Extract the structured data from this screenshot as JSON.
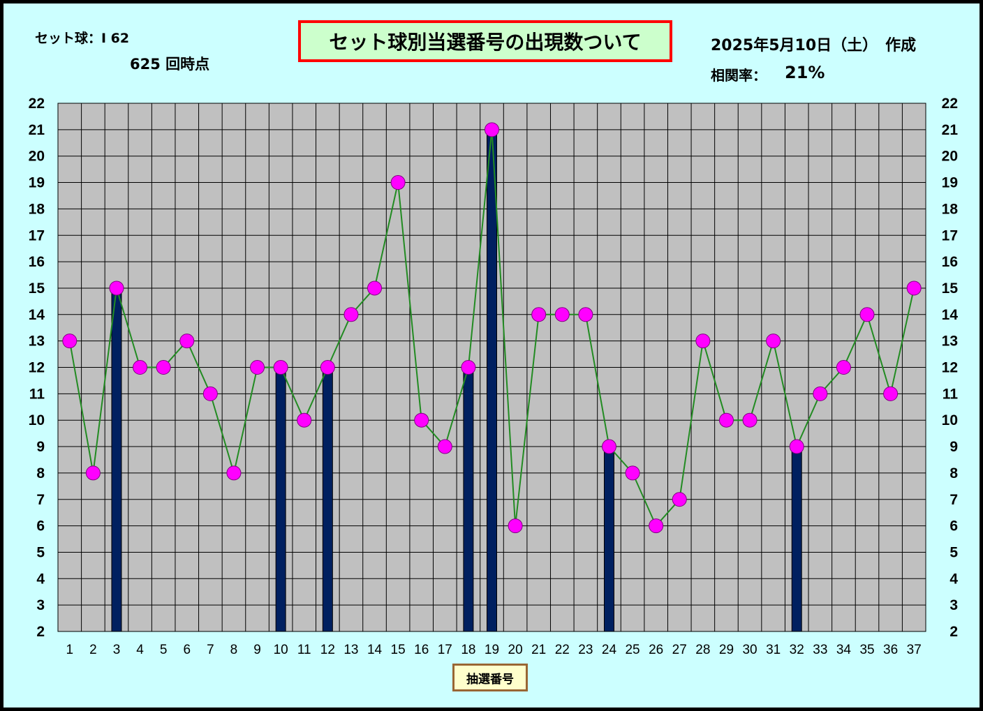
{
  "header": {
    "set_label": "セット球：I 62",
    "count_label": "625  回時点",
    "title": "セット球別当選番号の出現数ついて",
    "date": "2025年5月10日（土）　作成",
    "corr_label": "相関率：",
    "corr_value": "21%"
  },
  "colors": {
    "background": "#ccffff",
    "plot_area": "#c0c0c0",
    "bar": "#002060",
    "line": "#228b22",
    "marker": "#ff00ff",
    "title_bg": "#ccffcc",
    "title_border": "#ff0000"
  },
  "chart_data": {
    "type": "bar",
    "xlabel": "抽選番号",
    "ylabel": "",
    "title": "セット球別当選番号の出現数ついて",
    "categories": [
      "1",
      "2",
      "3",
      "4",
      "5",
      "6",
      "7",
      "8",
      "9",
      "10",
      "11",
      "12",
      "13",
      "14",
      "15",
      "16",
      "17",
      "18",
      "19",
      "20",
      "21",
      "22",
      "23",
      "24",
      "25",
      "26",
      "27",
      "28",
      "29",
      "30",
      "31",
      "32",
      "33",
      "34",
      "35",
      "36",
      "37"
    ],
    "ylim": [
      2,
      22
    ],
    "yticks": [
      2,
      3,
      4,
      5,
      6,
      7,
      8,
      9,
      10,
      11,
      12,
      13,
      14,
      15,
      16,
      17,
      18,
      19,
      20,
      21,
      22
    ],
    "grid": true,
    "series": [
      {
        "type": "line",
        "values": [
          13,
          8,
          15,
          12,
          12,
          13,
          11,
          8,
          12,
          12,
          10,
          12,
          14,
          15,
          19,
          10,
          9,
          12,
          21,
          6,
          14,
          14,
          14,
          9,
          8,
          6,
          7,
          13,
          10,
          10,
          13,
          9,
          11,
          12,
          14,
          11,
          15
        ]
      },
      {
        "type": "bar",
        "values": [
          null,
          null,
          15,
          null,
          null,
          null,
          null,
          null,
          null,
          12,
          null,
          12,
          null,
          null,
          null,
          null,
          null,
          12,
          21,
          null,
          null,
          null,
          null,
          9,
          null,
          null,
          null,
          null,
          null,
          null,
          null,
          9,
          null,
          null,
          null,
          null,
          null
        ]
      }
    ]
  }
}
